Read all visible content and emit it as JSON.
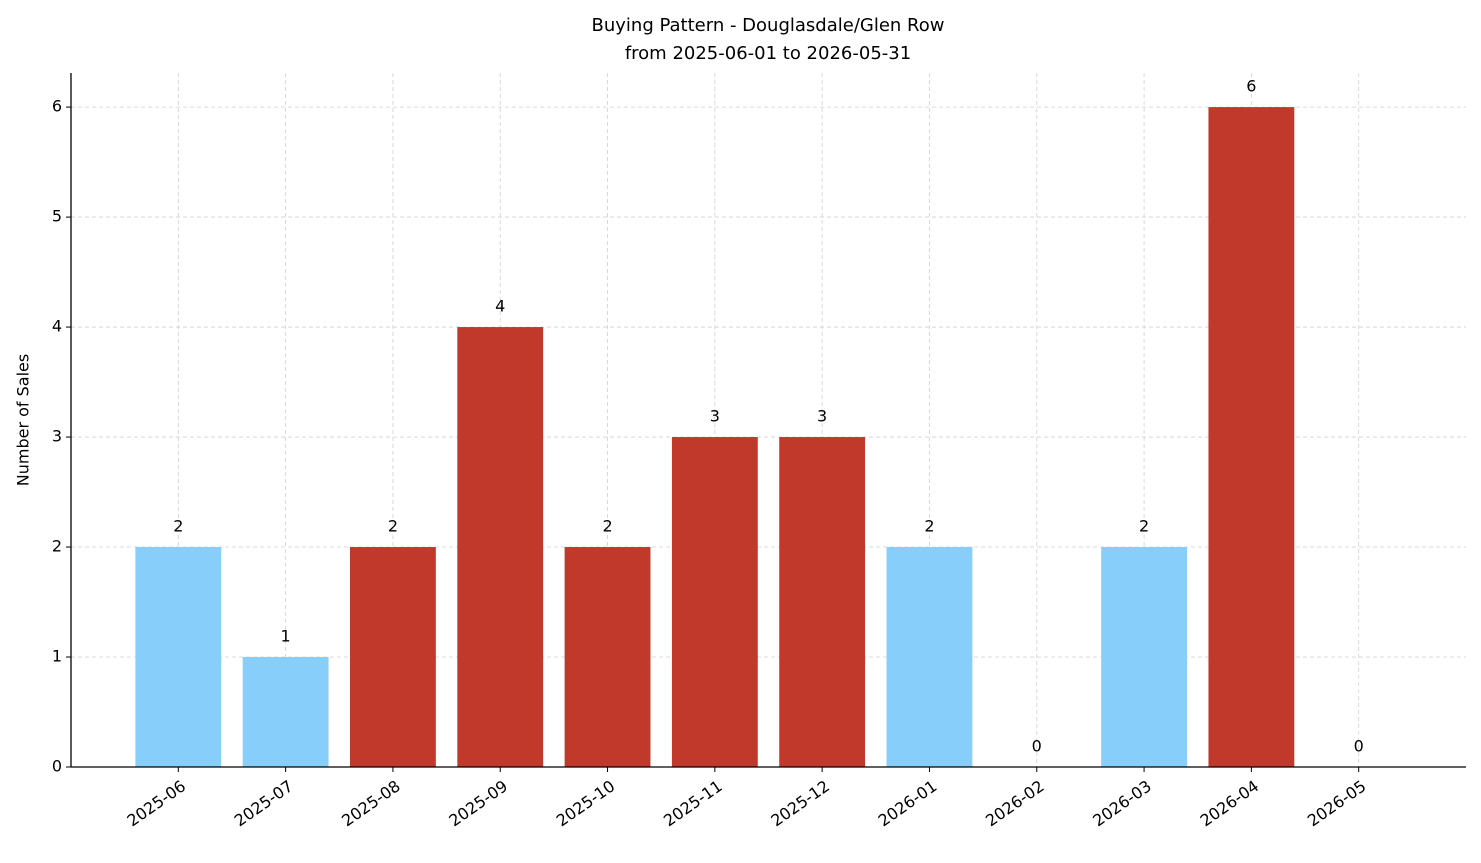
{
  "chart_data": {
    "type": "bar",
    "title": "Buying Pattern - Douglasdale/Glen Row",
    "subtitle": "from 2025-06-01 to 2026-05-31",
    "y_label": "Number of Sales",
    "categories": [
      "2025-06",
      "2025-07",
      "2025-08",
      "2025-09",
      "2025-10",
      "2025-11",
      "2025-12",
      "2026-01",
      "2026-02",
      "2026-03",
      "2026-04",
      "2026-05"
    ],
    "values": [
      2,
      1,
      2,
      4,
      2,
      3,
      3,
      2,
      0,
      2,
      6,
      0
    ],
    "colors": [
      "#87cefa",
      "#87cefa",
      "#c0392b",
      "#c0392b",
      "#c0392b",
      "#c0392b",
      "#c0392b",
      "#87cefa",
      "#87cefa",
      "#87cefa",
      "#c0392b",
      "#87cefa"
    ],
    "ylim": [
      0,
      6.31
    ],
    "yticks": [
      0,
      1,
      2,
      3,
      4,
      5,
      6
    ],
    "grid": true
  }
}
